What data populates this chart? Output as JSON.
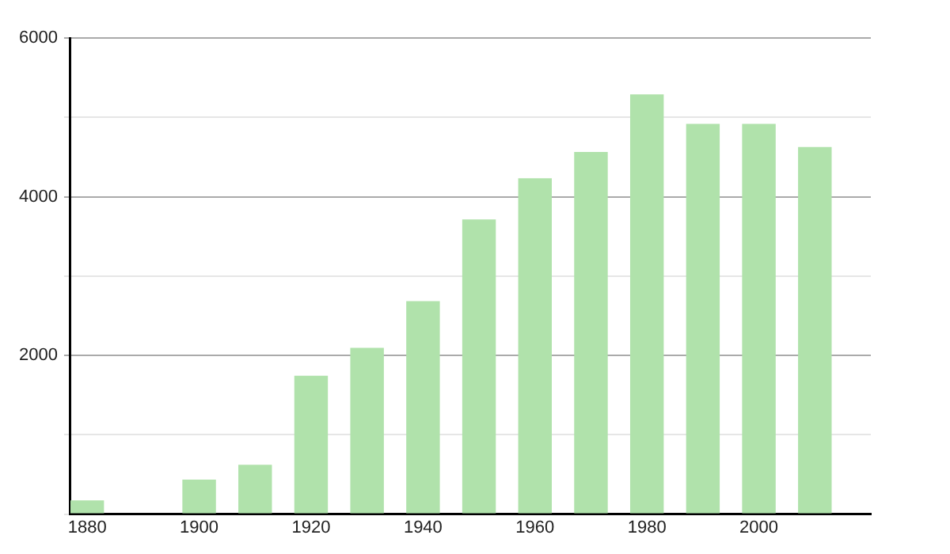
{
  "chart_data": {
    "type": "bar",
    "x": [
      1880,
      1900,
      1910,
      1920,
      1930,
      1940,
      1950,
      1960,
      1970,
      1980,
      1990,
      2000,
      2010
    ],
    "values": [
      172,
      436,
      622,
      1743,
      2095,
      2683,
      3713,
      4232,
      4564,
      5290,
      4917,
      4917,
      4626
    ],
    "color": "#b0e2ab",
    "xlim": [
      1877,
      2020
    ],
    "xticks": [
      1880,
      1900,
      1920,
      1940,
      1960,
      1980,
      2000
    ],
    "ylim": [
      0,
      6000
    ],
    "yticks": [
      {
        "value": 0,
        "label": null
      },
      {
        "value": 1000,
        "label": null
      },
      2000,
      {
        "value": 3000,
        "label": null
      },
      4000,
      {
        "value": 5000,
        "label": null
      },
      6000
    ],
    "grid": "y",
    "legend": false
  }
}
